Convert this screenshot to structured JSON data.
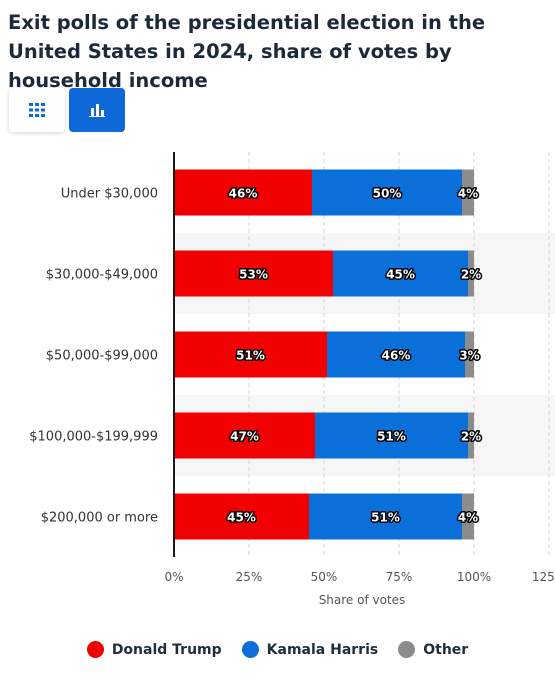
{
  "title": "Exit polls of the presidential election in the United States in 2024, share of votes by household income",
  "toggles": {
    "table_icon": "table-grid-icon",
    "chart_icon": "bar-chart-icon"
  },
  "colors": {
    "trump": "#f00000",
    "harris": "#0a6fd8",
    "other": "#8c8c8c",
    "accent": "#0e68d8"
  },
  "chart_data": {
    "type": "bar",
    "orientation": "horizontal",
    "stacked": true,
    "categories": [
      "Under $30,000",
      "$30,000-$49,000",
      "$50,000-$99,000",
      "$100,000-$199,999",
      "$200,000 or more"
    ],
    "series": [
      {
        "name": "Donald Trump",
        "values": [
          46,
          53,
          51,
          47,
          45
        ],
        "labels": [
          "46%",
          "53%",
          "51%",
          "47%",
          "45%"
        ],
        "color": "#f00000"
      },
      {
        "name": "Kamala Harris",
        "values": [
          50,
          45,
          46,
          51,
          51
        ],
        "labels": [
          "50%",
          "45%",
          "46%",
          "51%",
          "51%"
        ],
        "color": "#0a6fd8"
      },
      {
        "name": "Other",
        "values": [
          4,
          2,
          3,
          2,
          4
        ],
        "labels": [
          "4%",
          "2%",
          "3%",
          "2%",
          "4%"
        ],
        "color": "#8c8c8c"
      }
    ],
    "xlabel": "Share of votes",
    "xlim": [
      0,
      125
    ],
    "xticks": [
      0,
      25,
      50,
      75,
      100,
      125
    ],
    "xtick_labels": [
      "0%",
      "25%",
      "50%",
      "75%",
      "100%",
      "125%"
    ],
    "grid": true,
    "legend": "bottom"
  }
}
